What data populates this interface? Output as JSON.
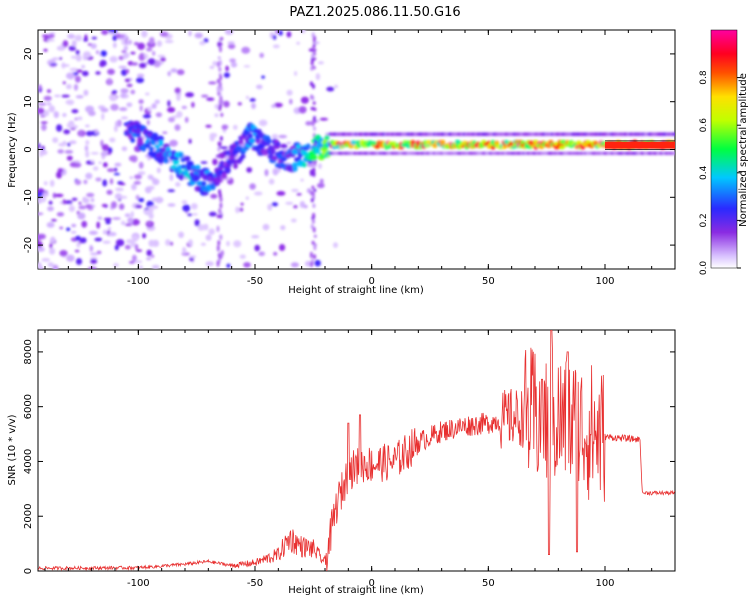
{
  "title": "PAZ1.2025.086.11.50.G16",
  "chart_data": [
    {
      "type": "heatmap",
      "xlabel": "Height of straight line (km)",
      "ylabel": "Frequency (Hz)",
      "xlim": [
        -143,
        130
      ],
      "ylim": [
        -25,
        25
      ],
      "xticks": [
        -100,
        -50,
        0,
        50,
        100
      ],
      "yticks": [
        -20,
        -10,
        0,
        10,
        20
      ],
      "colorbar": {
        "label": "Normalized spectral amplitude",
        "ticks": [
          "0.0",
          "0.2",
          "0.4",
          "0.6",
          "0.8"
        ],
        "tick_values": [
          0.0,
          0.2,
          0.4,
          0.6,
          0.8
        ],
        "range": [
          0,
          1
        ],
        "colors": [
          "#e6d6ff",
          "#7a1fff",
          "#2222ff",
          "#00c8ff",
          "#00ff00",
          "#ffff00",
          "#ff0000",
          "#ff00a0"
        ]
      },
      "ridge": [
        {
          "x": -103,
          "y": 4,
          "amp": 0.3
        },
        {
          "x": -90,
          "y": 0,
          "amp": 0.35
        },
        {
          "x": -80,
          "y": -4,
          "amp": 0.4
        },
        {
          "x": -72,
          "y": -7,
          "amp": 0.35
        },
        {
          "x": -60,
          "y": -2,
          "amp": 0.25
        },
        {
          "x": -52,
          "y": 3,
          "amp": 0.35
        },
        {
          "x": -45,
          "y": 0,
          "amp": 0.3
        },
        {
          "x": -35,
          "y": -2,
          "amp": 0.3
        },
        {
          "x": -20,
          "y": 1,
          "amp": 0.55
        },
        {
          "x": 0,
          "y": 1,
          "amp": 0.8
        },
        {
          "x": 50,
          "y": 1,
          "amp": 0.8
        },
        {
          "x": 100,
          "y": 1,
          "amp": 0.85
        },
        {
          "x": 130,
          "y": 1,
          "amp": 0.9
        }
      ]
    },
    {
      "type": "line",
      "xlabel": "Height of straight line (km)",
      "ylabel": "SNR (10 * v/v)",
      "xlim": [
        -143,
        130
      ],
      "ylim": [
        0,
        8800
      ],
      "xticks": [
        -100,
        -50,
        0,
        50,
        100
      ],
      "yticks": [
        0,
        2000,
        4000,
        6000,
        8000
      ],
      "color": "#e83030",
      "profile": [
        {
          "x": -143,
          "y": 100
        },
        {
          "x": -100,
          "y": 120
        },
        {
          "x": -90,
          "y": 180
        },
        {
          "x": -80,
          "y": 250
        },
        {
          "x": -70,
          "y": 350
        },
        {
          "x": -60,
          "y": 200
        },
        {
          "x": -50,
          "y": 300
        },
        {
          "x": -40,
          "y": 600
        },
        {
          "x": -35,
          "y": 1200
        },
        {
          "x": -30,
          "y": 900
        },
        {
          "x": -25,
          "y": 800
        },
        {
          "x": -20,
          "y": 300
        },
        {
          "x": -15,
          "y": 2400
        },
        {
          "x": -10,
          "y": 3600
        },
        {
          "x": -5,
          "y": 3900
        },
        {
          "x": 0,
          "y": 3900
        },
        {
          "x": 10,
          "y": 4000
        },
        {
          "x": 20,
          "y": 4700
        },
        {
          "x": 30,
          "y": 5100
        },
        {
          "x": 40,
          "y": 5300
        },
        {
          "x": 50,
          "y": 5400
        },
        {
          "x": 60,
          "y": 5600
        },
        {
          "x": 70,
          "y": 5600
        },
        {
          "x": 80,
          "y": 5500
        },
        {
          "x": 90,
          "y": 5200
        },
        {
          "x": 100,
          "y": 4900
        },
        {
          "x": 115,
          "y": 4800
        },
        {
          "x": 116,
          "y": 2850
        },
        {
          "x": 130,
          "y": 2850
        }
      ],
      "spikes": [
        {
          "x": 77,
          "y": 8800
        },
        {
          "x": 76,
          "y": 600
        },
        {
          "x": 73,
          "y": 7000
        },
        {
          "x": 84,
          "y": 8000
        },
        {
          "x": 88,
          "y": 700
        },
        {
          "x": -5,
          "y": 5700
        },
        {
          "x": -10,
          "y": 5400
        }
      ]
    }
  ]
}
